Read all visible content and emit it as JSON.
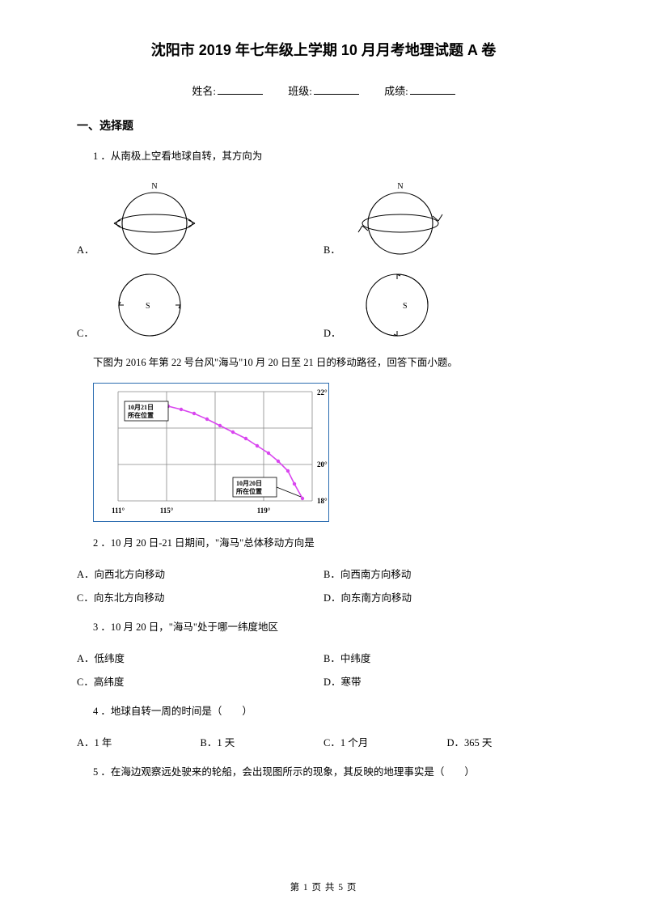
{
  "title": "沈阳市 2019 年七年级上学期 10 月月考地理试题 A 卷",
  "info": {
    "name_label": "姓名:",
    "class_label": "班级:",
    "score_label": "成绩:"
  },
  "section1": "一、选择题",
  "q1": {
    "num": "1 ．",
    "text": "从南极上空看地球自转，其方向为"
  },
  "q1_labels": {
    "a": "A．",
    "b": "B．",
    "c": "C．",
    "d": "D．"
  },
  "globe": {
    "n_label": "N",
    "s_label": "S",
    "circle_stroke": "#000000",
    "stroke_width": 1.2
  },
  "context1": "下图为 2016 年第 22 号台风\"海马\"10 月 20 日至 21 日的移动路径，回答下面小题。",
  "map": {
    "border_color": "#2b6cb0",
    "grid_color": "#888888",
    "grid_stroke": 0.8,
    "path_color": "#d946ef",
    "point_color": "#d946ef",
    "x_ticks": [
      "111°",
      "115°",
      "119°"
    ],
    "y_ticks": [
      "22°",
      "20°",
      "18°"
    ],
    "box1_lines": [
      "10月21日",
      "所在位置"
    ],
    "box2_lines": [
      "10月20日",
      "所在位置"
    ],
    "path_points": [
      [
        258,
        142
      ],
      [
        248,
        124
      ],
      [
        240,
        108
      ],
      [
        228,
        96
      ],
      [
        216,
        86
      ],
      [
        202,
        77
      ],
      [
        188,
        68
      ],
      [
        172,
        60
      ],
      [
        156,
        52
      ],
      [
        140,
        44
      ],
      [
        124,
        37
      ],
      [
        108,
        32
      ],
      [
        92,
        28
      ]
    ]
  },
  "q2": {
    "num": "2 ．",
    "text": "10 月 20 日-21 日期间，\"海马\"总体移动方向是",
    "a": "A．向西北方向移动",
    "b": "B．向西南方向移动",
    "c": "C．向东北方向移动",
    "d": "D．向东南方向移动"
  },
  "q3": {
    "num": "3 ．",
    "text": "10 月 20 日，\"海马\"处于哪一纬度地区",
    "a": "A．低纬度",
    "b": "B．中纬度",
    "c": "C．高纬度",
    "d": "D．寒带"
  },
  "q4": {
    "num": "4 ．",
    "text": "地球自转一周的时间是（　　）",
    "a": "A．1 年",
    "b": "B．1 天",
    "c": "C．1 个月",
    "d": "D．365 天"
  },
  "q5": {
    "num": "5 ．",
    "text": "在海边观察远处驶来的轮船，会出现图所示的现象，其反映的地理事实是（　　）"
  },
  "footer": "第 1 页 共 5 页"
}
